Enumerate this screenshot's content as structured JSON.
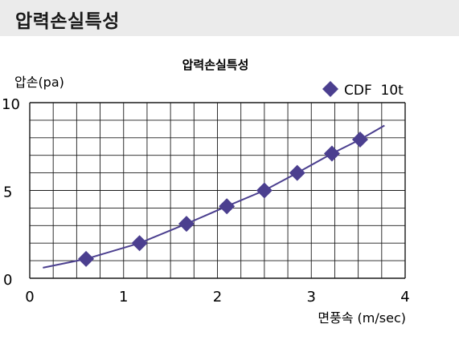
{
  "header": {
    "title": "압력손실특성"
  },
  "chart_data": {
    "type": "line",
    "title": "압력손실특성",
    "xlabel": "면풍속 (m/sec)",
    "ylabel": "압손(pa)",
    "xlim": [
      0,
      4
    ],
    "ylim": [
      0,
      10
    ],
    "xticks": [
      "0",
      "1",
      "2",
      "3",
      "4"
    ],
    "yticks": [
      "0",
      "5",
      "10"
    ],
    "grid": true,
    "legend_position": "top-right",
    "series": [
      {
        "name": "CDF  10t",
        "color": "#4b3f8f",
        "marker": "diamond",
        "line_x": [
          0.14,
          0.6,
          1.17,
          1.67,
          2.1,
          2.5,
          2.85,
          3.22,
          3.52,
          3.78
        ],
        "line_y": [
          0.6,
          1.1,
          2.0,
          3.1,
          4.1,
          5.0,
          6.0,
          7.1,
          7.9,
          8.7
        ],
        "points_x": [
          0.6,
          1.17,
          1.67,
          2.1,
          2.5,
          2.85,
          3.22,
          3.52
        ],
        "points_y": [
          1.1,
          2.0,
          3.1,
          4.1,
          5.0,
          6.0,
          7.1,
          7.9
        ]
      }
    ]
  }
}
